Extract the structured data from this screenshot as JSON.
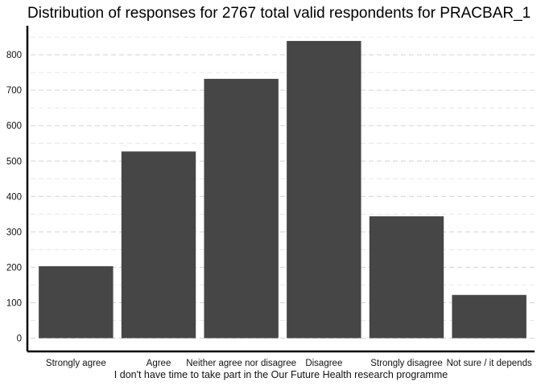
{
  "chart_data": {
    "type": "bar",
    "title": "Distribution of responses for 2767 total valid respondents for PRACBAR_1",
    "xlabel": "I don't have time to take part in the Our Future Health research programme",
    "ylabel": "",
    "categories": [
      "Strongly agree",
      "Agree",
      "Neither agree nor disagree",
      "Disagree",
      "Strongly disagree",
      "Not sure / it depends"
    ],
    "values": [
      203,
      527,
      732,
      839,
      344,
      122
    ],
    "ylim": [
      0,
      860
    ],
    "yticks": [
      0,
      100,
      200,
      300,
      400,
      500,
      600,
      700,
      800
    ],
    "grid": true,
    "legend": "none",
    "bar_color": "#464646"
  }
}
